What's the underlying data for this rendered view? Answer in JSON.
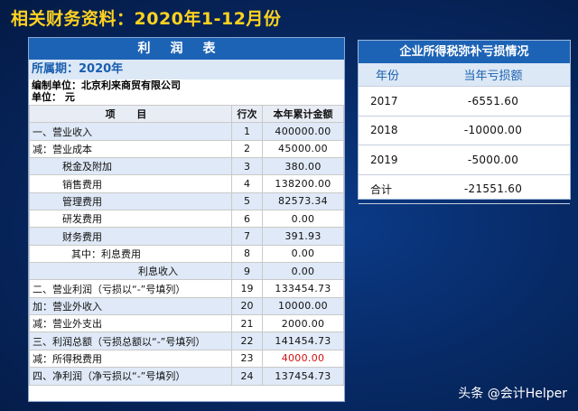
{
  "page_title": "相关财务资料：2020年1-12月份",
  "income_statement": {
    "title": "利润表",
    "period": "所属期：2020年",
    "company": "编制单位：北京利来商贸有限公司",
    "unit": "单位：  元",
    "headers": {
      "item": "项  目",
      "row_no": "行次",
      "amount": "本年累计金额"
    },
    "rows": [
      {
        "item": "一、营业收入",
        "no": "1",
        "amount": "400000.00"
      },
      {
        "item": "减：营业成本",
        "no": "2",
        "amount": "45000.00"
      },
      {
        "item": "税金及附加",
        "no": "3",
        "amount": "380.00",
        "indent": 1
      },
      {
        "item": "销售费用",
        "no": "4",
        "amount": "138200.00",
        "indent": 1
      },
      {
        "item": "管理费用",
        "no": "5",
        "amount": "82573.34",
        "indent": 1
      },
      {
        "item": "研发费用",
        "no": "6",
        "amount": "0.00",
        "indent": 1
      },
      {
        "item": "财务费用",
        "no": "7",
        "amount": "391.93",
        "indent": 1
      },
      {
        "item": "其中：利息费用",
        "no": "8",
        "amount": "0.00",
        "indent": 2
      },
      {
        "item": "利息收入",
        "no": "9",
        "amount": "0.00",
        "indent": 3
      },
      {
        "item": "二、营业利润（亏损以“-”号填列）",
        "no": "19",
        "amount": "133454.73"
      },
      {
        "item": "加：营业外收入",
        "no": "20",
        "amount": "10000.00"
      },
      {
        "item": "减：营业外支出",
        "no": "21",
        "amount": "2000.00"
      },
      {
        "item": "三、利润总额（亏损总额以“-”号填列）",
        "no": "22",
        "amount": "141454.73"
      },
      {
        "item": "减：所得税费用",
        "no": "23",
        "amount": "4000.00",
        "highlight": true
      },
      {
        "item": "四、净利润（净亏损以“-”号填列）",
        "no": "24",
        "amount": "137454.73"
      }
    ]
  },
  "tax_loss": {
    "title": "企业所得税弥补亏损情况",
    "headers": {
      "year": "年份",
      "loss": "当年亏损额"
    },
    "rows": [
      {
        "year": "2017",
        "loss": "-6551.60"
      },
      {
        "year": "2018",
        "loss": "-10000.00"
      },
      {
        "year": "2019",
        "loss": "-5000.00"
      },
      {
        "year": "合计",
        "loss": "-21551.60"
      }
    ]
  },
  "watermark": "头条 @会计Helper",
  "colors": {
    "title_yellow": "#ffd21f",
    "header_blue": "#1d63b5",
    "red_value": "#d01010"
  }
}
